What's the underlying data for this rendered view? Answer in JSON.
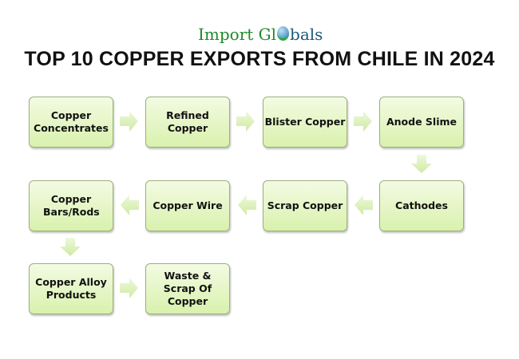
{
  "logo": {
    "part1": "Import Gl",
    "part2": "bals"
  },
  "title": "TOP 10 COPPER EXPORTS FROM CHILE IN 2024",
  "steps": [
    "Copper Concentrates",
    "Refined Copper",
    "Blister Copper",
    "Anode Slime",
    "Cathodes",
    "Scrap Copper",
    "Copper Wire",
    "Copper Bars/Rods",
    "Copper Alloy Products",
    "Waste & Scrap Of Copper"
  ],
  "colors": {
    "box_top": "#f3fbe3",
    "box_bottom": "#d9f1ad",
    "arrow": "#d6efb0",
    "logo_green": "#1f8a2a",
    "logo_blue": "#1d5a78"
  }
}
